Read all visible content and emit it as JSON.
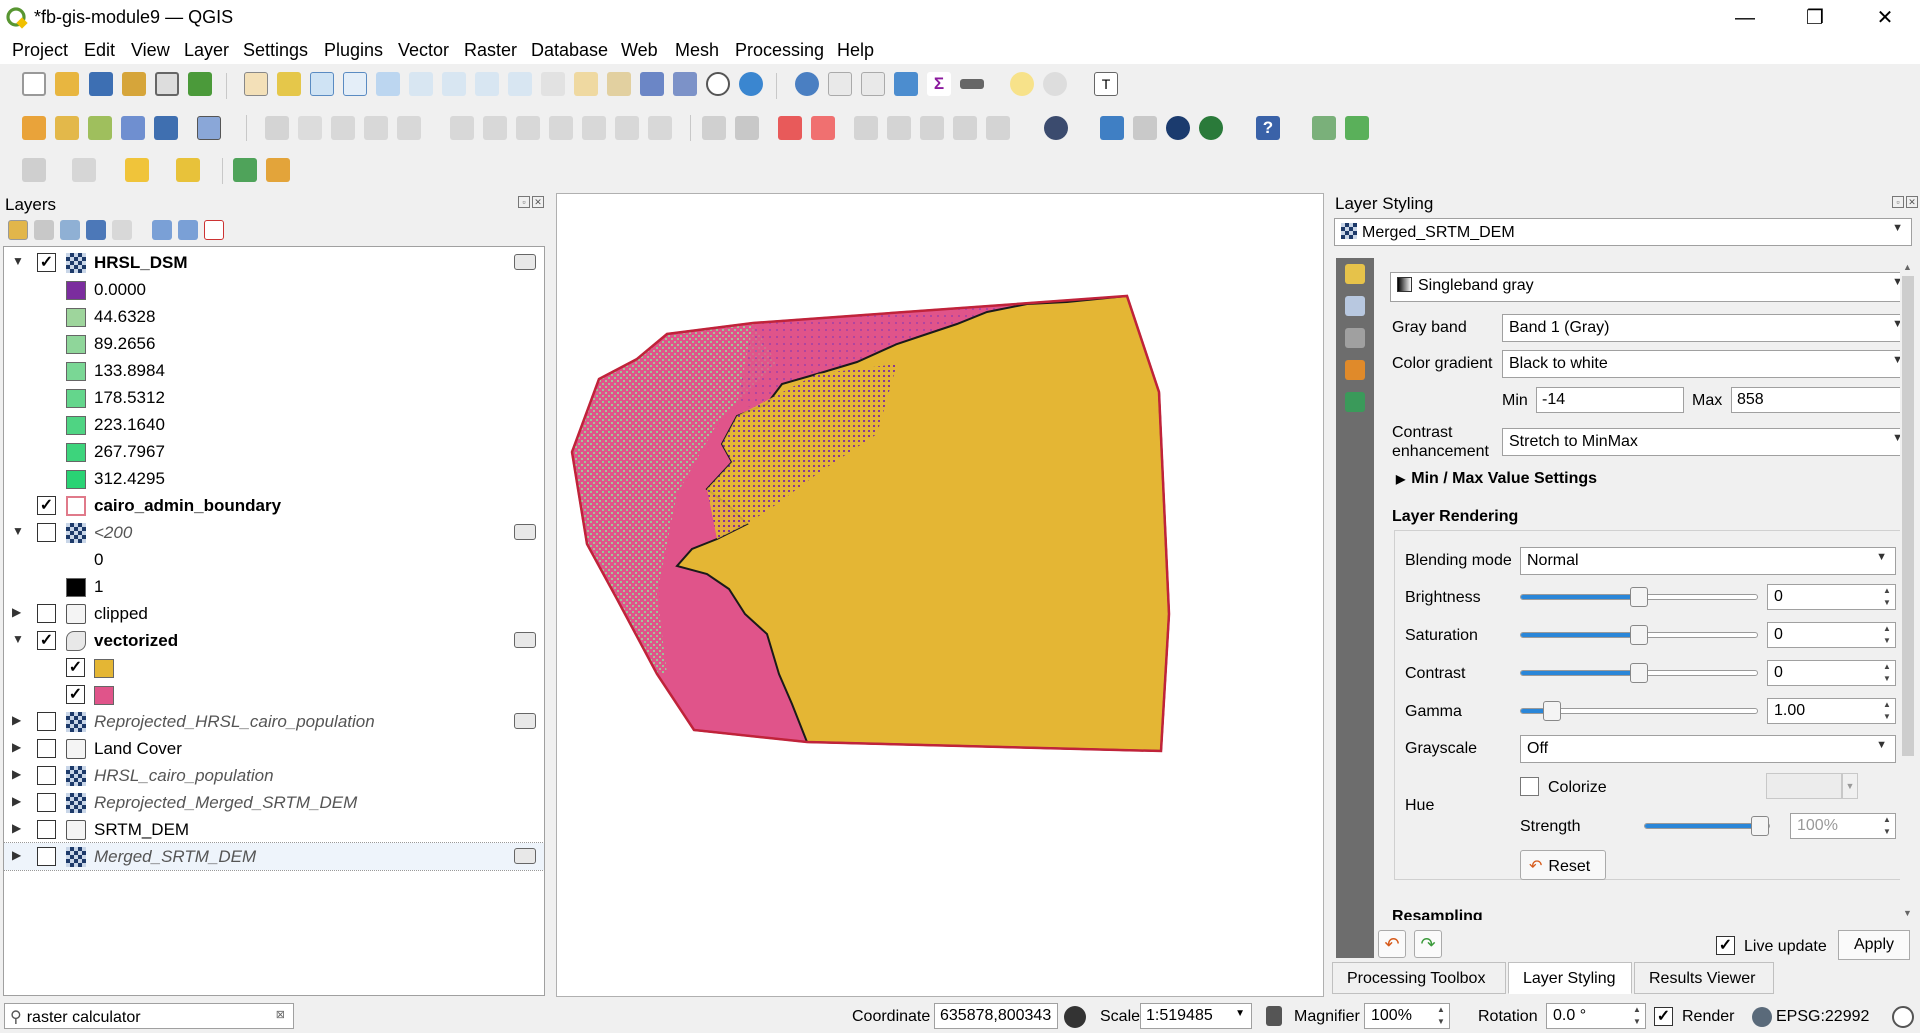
{
  "window": {
    "title": "*fb-gis-module9 — QGIS",
    "minimize": "—",
    "restore": "❐",
    "close": "✕"
  },
  "menu": [
    "Project",
    "Edit",
    "View",
    "Layer",
    "Settings",
    "Plugins",
    "Vector",
    "Raster",
    "Database",
    "Web",
    "Mesh",
    "Processing",
    "Help"
  ],
  "layers_panel": {
    "title": "Layers",
    "items": [
      {
        "type": "layer",
        "arrow": "▼",
        "checked": true,
        "label": "HRSL_DSM",
        "style": "bold",
        "icon": "raster-icon",
        "badge": true
      },
      {
        "type": "class",
        "color": "#7b2d9e",
        "label": "0.0000"
      },
      {
        "type": "class",
        "color": "#9ed59c",
        "label": "44.6328"
      },
      {
        "type": "class",
        "color": "#8fd69a",
        "label": "89.2656"
      },
      {
        "type": "class",
        "color": "#7ad795",
        "label": "133.8984"
      },
      {
        "type": "class",
        "color": "#64d68c",
        "label": "178.5312"
      },
      {
        "type": "class",
        "color": "#4fd483",
        "label": "223.1640"
      },
      {
        "type": "class",
        "color": "#3dd47c",
        "label": "267.7967"
      },
      {
        "type": "class",
        "color": "#2ad374",
        "label": "312.4295"
      },
      {
        "type": "layer",
        "arrow": "",
        "checked": true,
        "label": "cairo_admin_boundary",
        "style": "bold",
        "icon": "polygon-outline-icon",
        "badge": false
      },
      {
        "type": "layer",
        "arrow": "▼",
        "checked": false,
        "label": "<200",
        "style": "italic",
        "icon": "raster-icon",
        "badge": true
      },
      {
        "type": "class",
        "color": "#ffffff",
        "label": "0",
        "noborder": true
      },
      {
        "type": "class",
        "color": "#000000",
        "label": "1"
      },
      {
        "type": "layer",
        "arrow": "▶",
        "checked": false,
        "label": "clipped",
        "style": "normal",
        "icon": "virtual-raster-icon",
        "badge": false
      },
      {
        "type": "layer",
        "arrow": "▼",
        "checked": true,
        "label": "vectorized",
        "style": "bold",
        "icon": "polygon-layer-icon",
        "badge": true
      },
      {
        "type": "subclass",
        "checked": true,
        "color": "#e4b634"
      },
      {
        "type": "subclass",
        "checked": true,
        "color": "#e0548a"
      },
      {
        "type": "layer",
        "arrow": "▶",
        "checked": false,
        "label": "Reprojected_HRSL_cairo_population",
        "style": "italic",
        "icon": "raster-icon",
        "badge": true
      },
      {
        "type": "layer",
        "arrow": "▶",
        "checked": false,
        "label": "Land Cover",
        "style": "normal",
        "icon": "virtual-raster-icon",
        "badge": false
      },
      {
        "type": "layer",
        "arrow": "▶",
        "checked": false,
        "label": "HRSL_cairo_population",
        "style": "italic",
        "icon": "raster-icon",
        "badge": false
      },
      {
        "type": "layer",
        "arrow": "▶",
        "checked": false,
        "label": "Reprojected_Merged_SRTM_DEM",
        "style": "italic",
        "icon": "raster-icon",
        "badge": false
      },
      {
        "type": "layer",
        "arrow": "▶",
        "checked": false,
        "label": "SRTM_DEM",
        "style": "normal",
        "icon": "virtual-raster-icon",
        "badge": false
      },
      {
        "type": "layer",
        "arrow": "▶",
        "checked": false,
        "label": "Merged_SRTM_DEM",
        "style": "italic",
        "icon": "raster-icon",
        "badge": true,
        "selected": true
      }
    ]
  },
  "styling_panel": {
    "title": "Layer Styling",
    "layer_select": "Merged_SRTM_DEM",
    "renderer": "Singleband gray",
    "gray_band_label": "Gray band",
    "gray_band": "Band 1 (Gray)",
    "color_gradient_label": "Color gradient",
    "color_gradient": "Black to white",
    "min_label": "Min",
    "min_value": "-14",
    "max_label": "Max",
    "max_value": "858",
    "contrast_label_1": "Contrast",
    "contrast_label_2": "enhancement",
    "contrast_enhancement": "Stretch to MinMax",
    "minmax_settings": "Min / Max Value Settings",
    "layer_rendering": "Layer Rendering",
    "blending_mode_label": "Blending mode",
    "blending_mode": "Normal",
    "brightness_label": "Brightness",
    "brightness": "0",
    "brightness_level": 0.5,
    "saturation_label": "Saturation",
    "saturation": "0",
    "saturation_level": 0.5,
    "contrast_label": "Contrast",
    "contrast": "0",
    "contrast_level": 0.5,
    "gamma_label": "Gamma",
    "gamma": "1.00",
    "gamma_level": 0.1,
    "grayscale_label": "Grayscale",
    "grayscale": "Off",
    "hue_label": "Hue",
    "colorize_label": "Colorize",
    "strength_label": "Strength",
    "strength": "100%",
    "strength_level": 1.0,
    "reset_label": "Reset",
    "resampling_label": "Resampling",
    "live_update_label": "Live update",
    "apply_label": "Apply"
  },
  "bottom_tabs": [
    "Processing Toolbox",
    "Layer Styling",
    "Results Viewer"
  ],
  "statusbar": {
    "search_value": "raster calculator",
    "coordinate_label": "Coordinate",
    "coordinate": "635878,800343",
    "scale_label": "Scale",
    "scale": "1:519485",
    "magnifier_label": "Magnifier",
    "magnifier": "100%",
    "rotation_label": "Rotation",
    "rotation": "0.0 °",
    "render_label": "Render",
    "crs": "EPSG:22992"
  },
  "colors": {
    "desert": "#e4b634",
    "urban": "#e0548a",
    "vegetation": "#8fd69a",
    "purple": "#7b2d9e",
    "accent": "#2a86d8"
  }
}
